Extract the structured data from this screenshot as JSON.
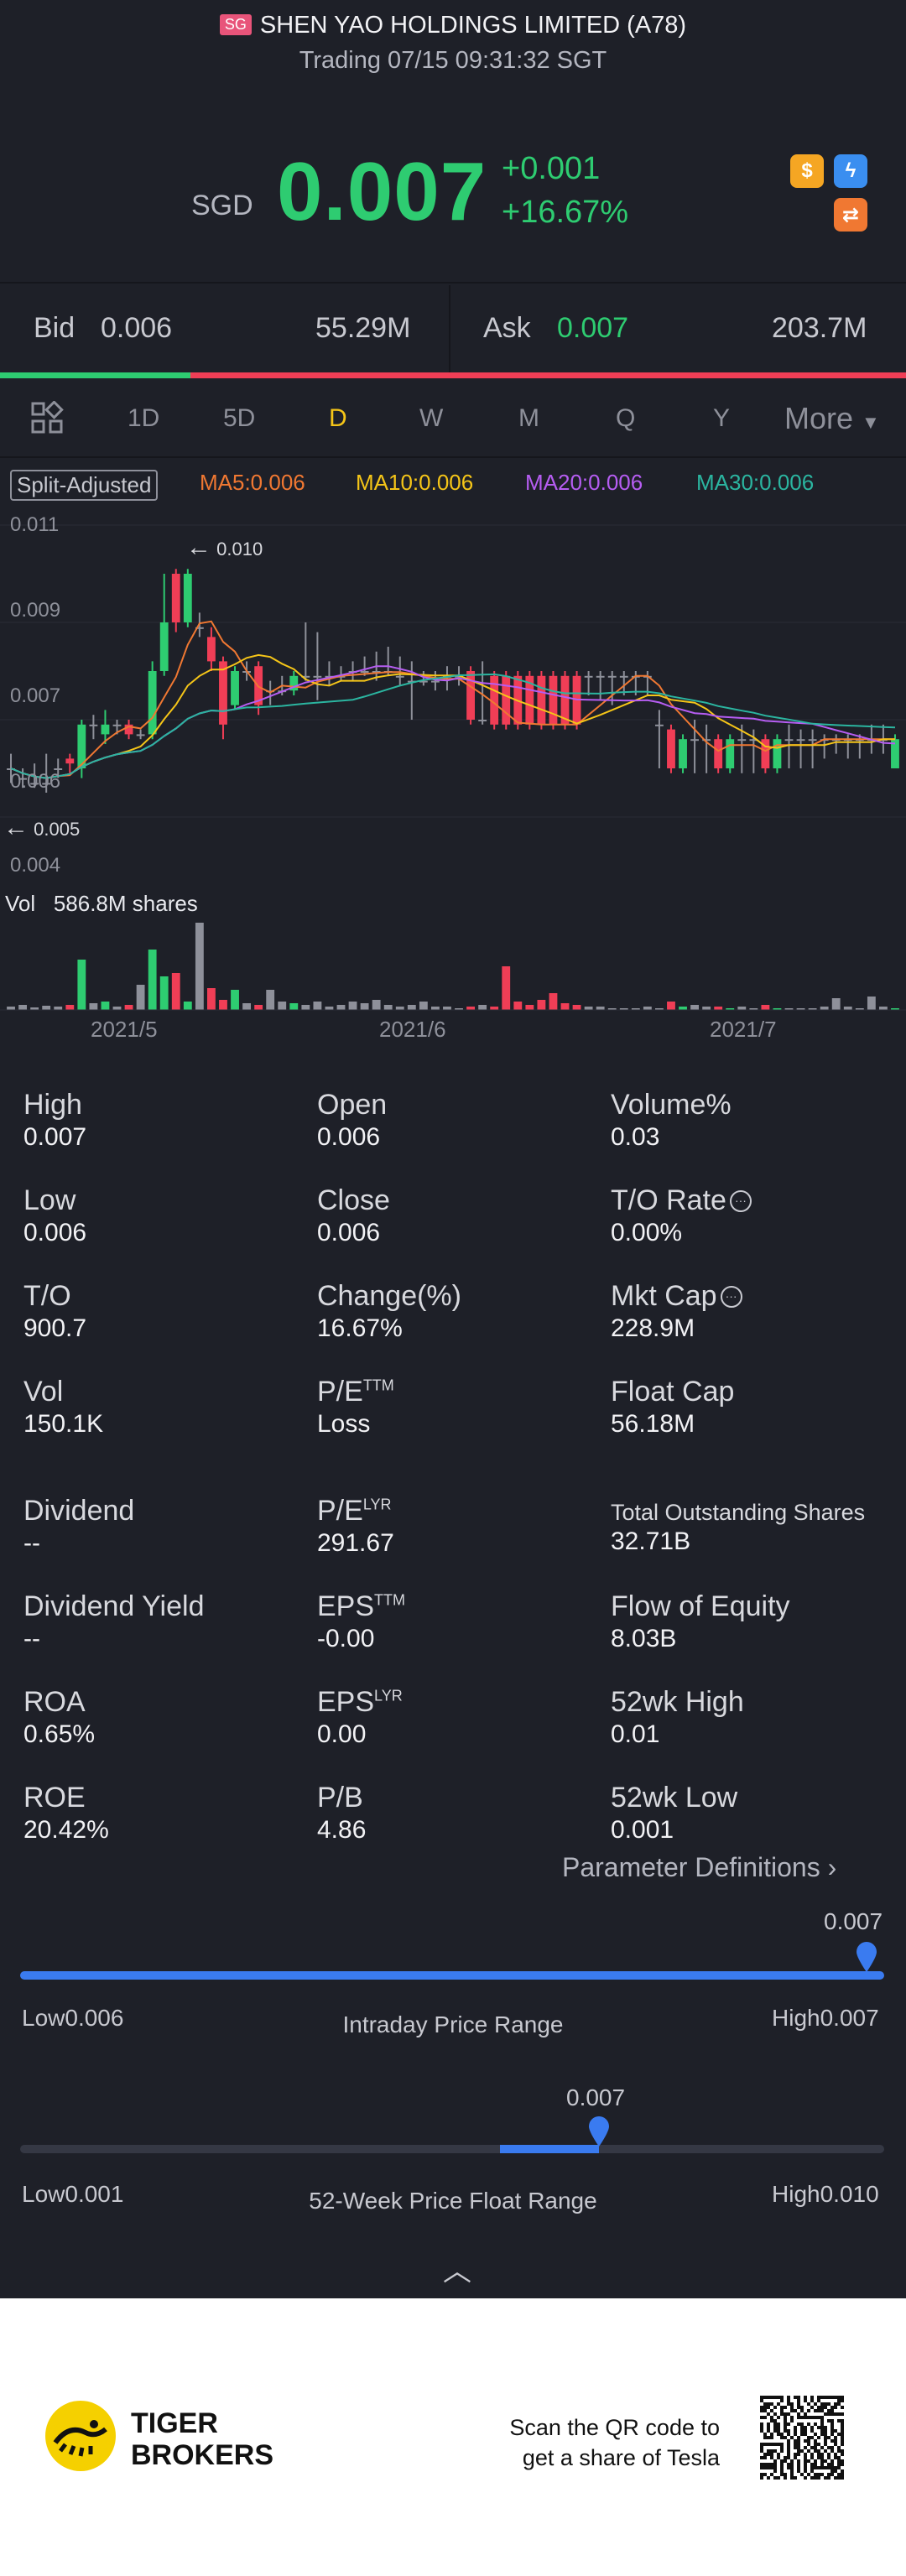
{
  "header": {
    "badge": "SG",
    "title": "SHEN YAO HOLDINGS LIMITED (A78)",
    "subtitle": "Trading 07/15 09:31:32 SGT"
  },
  "quote": {
    "currency": "SGD",
    "price": "0.007",
    "change": "+0.001",
    "change_pct": "+16.67%",
    "color_up": "#2ecc71",
    "color_down": "#f03e56"
  },
  "bidask": {
    "bid_label": "Bid",
    "bid_price": "0.006",
    "bid_volume": "55.29M",
    "ask_label": "Ask",
    "ask_price": "0.007",
    "ask_volume": "203.7M",
    "bid_share": 0.21
  },
  "tabs": [
    {
      "label": "1D"
    },
    {
      "label": "5D"
    },
    {
      "label": "D",
      "active": true
    },
    {
      "label": "W"
    },
    {
      "label": "M"
    },
    {
      "label": "Q"
    },
    {
      "label": "Y"
    },
    {
      "label": "More"
    }
  ],
  "chart_header": {
    "split_label": "Split-Adjusted",
    "ma5": "MA5:0.006",
    "ma10": "MA10:0.006",
    "ma20": "MA20:0.006",
    "ma30": "MA30:0.006"
  },
  "chart_data": {
    "type": "candlestick",
    "y_ticks": [
      "0.011",
      "0.009",
      "0.007",
      "0.006",
      "0.004"
    ],
    "ylim": [
      0.004,
      0.011
    ],
    "x_labels": [
      "2021/5",
      "2021/6",
      "2021/7"
    ],
    "max_marker": "0.010",
    "min_marker": "0.005",
    "volume_label": "Vol",
    "volume_value": "586.8M shares",
    "ma_colors": {
      "ma5": "#f07832",
      "ma10": "#f5c518",
      "ma20": "#b65df2",
      "ma30": "#2bb5a0"
    }
  },
  "stats": [
    {
      "label": "High",
      "value": "0.007"
    },
    {
      "label": "Open",
      "value": "0.006"
    },
    {
      "label": "Volume%",
      "value": "0.03"
    },
    {
      "label": "Low",
      "value": "0.006"
    },
    {
      "label": "Close",
      "value": "0.006"
    },
    {
      "label": "T/O Rate",
      "value": "0.00%"
    },
    {
      "label": "T/O",
      "value": "900.7"
    },
    {
      "label": "Change(%)",
      "value": "16.67%"
    },
    {
      "label": "Mkt Cap",
      "value": "228.9M"
    },
    {
      "label": "Vol",
      "value": "150.1K"
    },
    {
      "label": "P/E",
      "sup": "TTM",
      "value": "Loss"
    },
    {
      "label": "Float Cap",
      "value": "56.18M"
    },
    {
      "label": "Dividend",
      "value": "--"
    },
    {
      "label": "P/E",
      "sup": "LYR",
      "value": "291.67"
    },
    {
      "label": "Total Outstanding Shares",
      "value": "32.71B"
    },
    {
      "label": "Dividend Yield",
      "value": "--"
    },
    {
      "label": "EPS",
      "sup": "TTM",
      "value": "-0.00"
    },
    {
      "label": "Flow of Equity",
      "value": "8.03B"
    },
    {
      "label": "ROA",
      "value": "0.65%"
    },
    {
      "label": "EPS",
      "sup": "LYR",
      "value": "0.00"
    },
    {
      "label": "52wk High",
      "value": "0.01"
    },
    {
      "label": "ROE",
      "value": "20.42%"
    },
    {
      "label": "P/B",
      "value": "4.86"
    },
    {
      "label": "52wk Low",
      "value": "0.001"
    }
  ],
  "param_link": "Parameter Definitions",
  "intraday": {
    "marker": "0.007",
    "low": "Low0.006",
    "high": "High0.007",
    "title": "Intraday Price Range",
    "position": 0.98
  },
  "week52": {
    "marker": "0.007",
    "low": "Low0.001",
    "high": "High0.010",
    "title": "52-Week Price Float Range",
    "position": 0.67
  },
  "footer": {
    "brand_line1": "TIGER",
    "brand_line2": "BROKERS",
    "promo_line1": "Scan the QR code to",
    "promo_line2": "get a share of Tesla"
  }
}
